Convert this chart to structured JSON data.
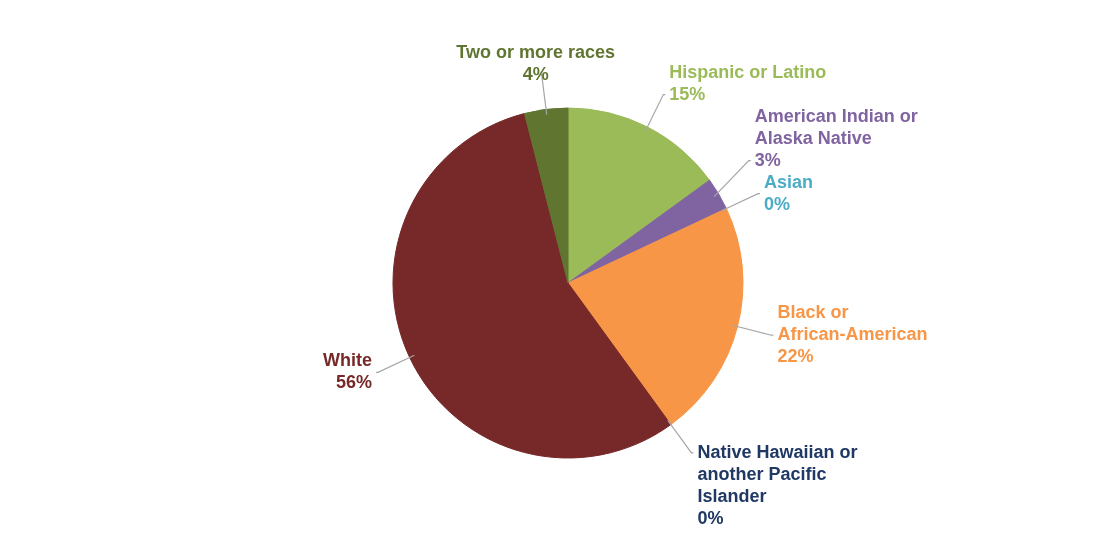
{
  "chart_data": {
    "type": "pie",
    "categories": [
      "Hispanic or Latino",
      "American Indian or Alaska Native",
      "Asian",
      "Black or African-American",
      "Native Hawaiian or another Pacific Islander",
      "White",
      "Two or more races"
    ],
    "values": [
      15,
      3,
      0,
      22,
      0,
      56,
      4
    ],
    "colors": [
      "#9bbb59",
      "#8064a2",
      "#4bacc6",
      "#f79646",
      "#1f3864",
      "#772828",
      "#5f7530"
    ],
    "value_labels": [
      "15%",
      "3%",
      "0%",
      "22%",
      "0%",
      "56%",
      "4%"
    ]
  }
}
